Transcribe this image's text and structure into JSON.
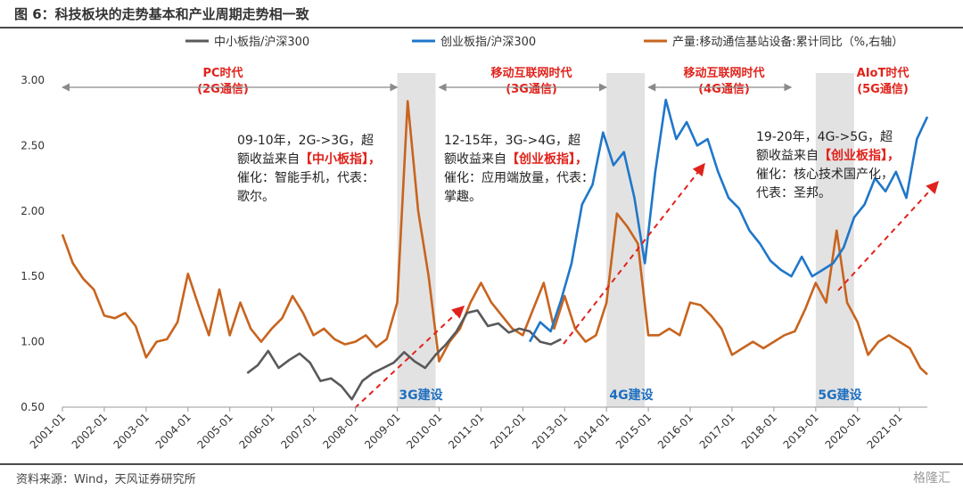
{
  "figure_title": "图 6：科技板块的走势基本和产业周期走势相一致",
  "source": "资料来源：Wind，天风证券研究所",
  "watermark": "格隆汇",
  "colors": {
    "smallcap": "#595959",
    "chinext": "#1f77c9",
    "production": "#c8641e",
    "accent": "#e0231c",
    "shade": "#e2e2e2",
    "build": "#1f6fbf"
  },
  "chart_data": {
    "type": "line",
    "x_axis": {
      "type": "date",
      "ticks": [
        "2001-01",
        "2002-01",
        "2003-01",
        "2004-01",
        "2005-01",
        "2006-01",
        "2007-01",
        "2008-01",
        "2009-01",
        "2010-01",
        "2011-01",
        "2012-01",
        "2013-01",
        "2014-01",
        "2015-01",
        "2016-01",
        "2017-01",
        "2018-01",
        "2019-01",
        "2020-01",
        "2021-01"
      ],
      "range": [
        "2001-01",
        "2021-09"
      ]
    },
    "y_axis": {
      "range": [
        0.5,
        3.0
      ],
      "ticks": [
        "0.50",
        "1.00",
        "1.50",
        "2.00",
        "2.50",
        "3.00"
      ],
      "grid": false
    },
    "legend": {
      "position": "top",
      "entries": [
        "中小板指/沪深300",
        "创业板指/沪深300",
        "产量:移动通信基站设备:累计同比（%,右轴）"
      ]
    },
    "series": [
      {
        "name": "中小板指/沪深300",
        "x": [
          "2005-06",
          "2005-09",
          "2005-12",
          "2006-03",
          "2006-06",
          "2006-09",
          "2006-12",
          "2007-03",
          "2007-06",
          "2007-09",
          "2007-12",
          "2008-03",
          "2008-06",
          "2008-09",
          "2008-12",
          "2009-03",
          "2009-06",
          "2009-09",
          "2009-12",
          "2010-03",
          "2010-06",
          "2010-09",
          "2010-12",
          "2011-03",
          "2011-06",
          "2011-09",
          "2011-12",
          "2012-03",
          "2012-06",
          "2012-09",
          "2012-12"
        ],
        "y": [
          0.76,
          0.82,
          0.93,
          0.8,
          0.86,
          0.91,
          0.84,
          0.7,
          0.72,
          0.66,
          0.56,
          0.7,
          0.76,
          0.8,
          0.84,
          0.92,
          0.85,
          0.8,
          0.9,
          0.98,
          1.08,
          1.22,
          1.24,
          1.12,
          1.14,
          1.07,
          1.1,
          1.08,
          1.0,
          0.98,
          1.02
        ]
      },
      {
        "name": "创业板指/沪深300",
        "x": [
          "2012-03",
          "2012-06",
          "2012-09",
          "2012-12",
          "2013-03",
          "2013-06",
          "2013-09",
          "2013-12",
          "2014-03",
          "2014-06",
          "2014-09",
          "2014-12",
          "2015-03",
          "2015-06",
          "2015-09",
          "2015-12",
          "2016-03",
          "2016-06",
          "2016-09",
          "2016-12",
          "2017-03",
          "2017-06",
          "2017-09",
          "2017-12",
          "2018-03",
          "2018-06",
          "2018-09",
          "2018-12",
          "2019-03",
          "2019-06",
          "2019-09",
          "2019-12",
          "2020-03",
          "2020-06",
          "2020-09",
          "2020-12",
          "2021-03",
          "2021-06",
          "2021-09"
        ],
        "y": [
          1.0,
          1.15,
          1.08,
          1.32,
          1.6,
          2.05,
          2.2,
          2.6,
          2.35,
          2.45,
          2.1,
          1.6,
          2.3,
          2.85,
          2.55,
          2.68,
          2.5,
          2.55,
          2.3,
          2.1,
          2.02,
          1.85,
          1.75,
          1.62,
          1.55,
          1.5,
          1.65,
          1.5,
          1.55,
          1.6,
          1.72,
          1.95,
          2.05,
          2.25,
          2.15,
          2.3,
          2.1,
          2.55,
          2.72
        ]
      },
      {
        "name": "产量:移动通信基站设备:累计同比（%,右轴）",
        "x": [
          "2001-01",
          "2001-04",
          "2001-07",
          "2001-10",
          "2002-01",
          "2002-04",
          "2002-07",
          "2002-10",
          "2003-01",
          "2003-04",
          "2003-07",
          "2003-10",
          "2004-01",
          "2004-04",
          "2004-07",
          "2004-10",
          "2005-01",
          "2005-04",
          "2005-07",
          "2005-10",
          "2006-01",
          "2006-04",
          "2006-07",
          "2006-10",
          "2007-01",
          "2007-04",
          "2007-07",
          "2007-10",
          "2008-01",
          "2008-04",
          "2008-07",
          "2008-10",
          "2009-01",
          "2009-04",
          "2009-07",
          "2009-10",
          "2010-01",
          "2010-04",
          "2010-07",
          "2010-10",
          "2011-01",
          "2011-04",
          "2011-07",
          "2011-10",
          "2012-01",
          "2012-04",
          "2012-07",
          "2012-10",
          "2013-01",
          "2013-04",
          "2013-07",
          "2013-10",
          "2014-01",
          "2014-04",
          "2014-07",
          "2014-10",
          "2015-01",
          "2015-04",
          "2015-07",
          "2015-10",
          "2016-01",
          "2016-04",
          "2016-07",
          "2016-10",
          "2017-01",
          "2017-04",
          "2017-07",
          "2017-10",
          "2018-01",
          "2018-04",
          "2018-07",
          "2018-10",
          "2019-01",
          "2019-04",
          "2019-07",
          "2019-10",
          "2020-01",
          "2020-04",
          "2020-07",
          "2020-10",
          "2021-01",
          "2021-04",
          "2021-07",
          "2021-09"
        ],
        "y": [
          1.82,
          1.6,
          1.48,
          1.4,
          1.2,
          1.18,
          1.22,
          1.12,
          0.88,
          1.0,
          1.02,
          1.15,
          1.52,
          1.28,
          1.05,
          1.4,
          1.05,
          1.3,
          1.1,
          1.0,
          1.1,
          1.18,
          1.35,
          1.22,
          1.05,
          1.1,
          1.02,
          0.98,
          1.0,
          1.05,
          0.96,
          1.02,
          1.3,
          2.84,
          2.0,
          1.5,
          0.85,
          1.0,
          1.1,
          1.3,
          1.45,
          1.3,
          1.2,
          1.1,
          1.05,
          1.25,
          1.45,
          1.1,
          1.35,
          1.1,
          1.0,
          1.05,
          1.3,
          1.98,
          1.88,
          1.75,
          1.05,
          1.05,
          1.1,
          1.05,
          1.3,
          1.28,
          1.2,
          1.1,
          0.9,
          0.95,
          1.0,
          0.95,
          1.0,
          1.05,
          1.08,
          1.25,
          1.45,
          1.3,
          1.85,
          1.3,
          1.15,
          0.9,
          1.0,
          1.05,
          1.0,
          0.95,
          0.8,
          0.75
        ]
      }
    ],
    "shaded_periods": [
      [
        "2009-01",
        "2009-12"
      ],
      [
        "2014-01",
        "2014-12"
      ],
      [
        "2019-01",
        "2019-12"
      ]
    ],
    "era_labels": [
      {
        "line1": "PC时代",
        "line2": "(2G通信)",
        "arrow": [
          "2001-01",
          "2009-01"
        ]
      },
      {
        "line1": "移动互联网时代",
        "line2": "(3G通信)",
        "arrow": [
          "2010-01",
          "2014-01"
        ]
      },
      {
        "line1": "移动互联网时代",
        "line2": "(4G通信)",
        "arrow": [
          "2015-01",
          "2018-06"
        ]
      },
      {
        "line1": "AIoT时代",
        "line2": "(5G通信)",
        "arrow": []
      }
    ],
    "build_labels": [
      "3G建设",
      "4G建设",
      "5G建设"
    ],
    "notes": [
      {
        "lines": [
          [
            "09-10年，2G->3G，超",
            ""
          ],
          [
            "额收益来自",
            "【中小板指】，"
          ],
          [
            "催化：智能手机，代表：",
            ""
          ],
          [
            "歌尔。",
            ""
          ]
        ]
      },
      {
        "lines": [
          [
            "12-15年，3G->4G，超",
            ""
          ],
          [
            "额收益来自",
            "【创业板指】，"
          ],
          [
            "催化：应用端放量，代表：",
            ""
          ],
          [
            "掌趣。",
            ""
          ]
        ]
      },
      {
        "lines": [
          [
            "19-20年，4G->5G，超",
            ""
          ],
          [
            "额收益来自",
            "【创业板指】，"
          ],
          [
            "催化：核心技术国产化，",
            ""
          ],
          [
            "代表：圣邦。",
            ""
          ]
        ]
      }
    ]
  }
}
